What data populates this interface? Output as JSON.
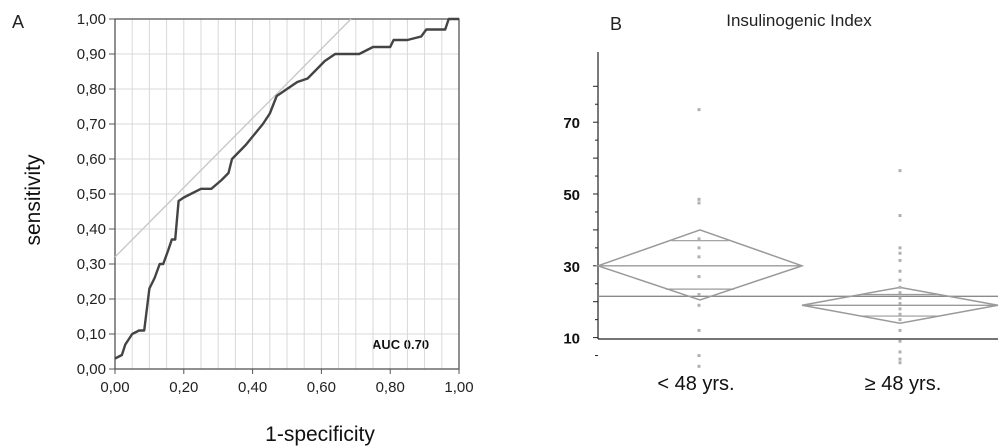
{
  "chart_data": [
    {
      "type": "line",
      "panel": "A",
      "xlabel": "1-specificity",
      "ylabel": "sensitivity",
      "xlim": [
        0,
        1
      ],
      "ylim": [
        0,
        1
      ],
      "xticks": [
        "0,00",
        "0,20",
        "0,40",
        "0,60",
        "0,80",
        "1,00"
      ],
      "yticks": [
        "0,00",
        "0,10",
        "0,20",
        "0,30",
        "0,40",
        "0,50",
        "0,60",
        "0,70",
        "0,80",
        "0,90",
        "1,00"
      ],
      "grid": true,
      "annotation": "AUC 0.70",
      "series": [
        {
          "x": [
            0.0,
            0.02,
            0.03,
            0.05,
            0.07,
            0.085,
            0.1,
            0.115,
            0.13,
            0.14,
            0.155,
            0.165,
            0.175,
            0.185,
            0.2,
            0.22,
            0.25,
            0.28,
            0.31,
            0.33,
            0.34,
            0.38,
            0.43,
            0.45,
            0.47,
            0.5,
            0.53,
            0.56,
            0.58,
            0.61,
            0.64,
            0.69,
            0.71,
            0.75,
            0.8,
            0.81,
            0.85,
            0.89,
            0.905,
            0.91,
            0.96,
            0.97,
            1.0
          ],
          "y": [
            0.03,
            0.04,
            0.07,
            0.1,
            0.11,
            0.11,
            0.23,
            0.26,
            0.3,
            0.3,
            0.34,
            0.37,
            0.37,
            0.48,
            0.49,
            0.5,
            0.515,
            0.515,
            0.54,
            0.56,
            0.6,
            0.64,
            0.7,
            0.73,
            0.78,
            0.8,
            0.82,
            0.83,
            0.85,
            0.88,
            0.9,
            0.9,
            0.9,
            0.92,
            0.92,
            0.94,
            0.94,
            0.95,
            0.97,
            0.97,
            0.97,
            1.0,
            1.0
          ]
        },
        {
          "x": [
            0,
            0.686
          ],
          "y": [
            0.32,
            1.0
          ]
        }
      ]
    },
    {
      "type": "scatter",
      "panel": "B",
      "title": "Insulinogenic Index",
      "categories": [
        "< 48 yrs.",
        "≥ 48 yrs."
      ],
      "yticks": [
        "10",
        "30",
        "50",
        "70"
      ],
      "ylim": [
        0,
        80
      ],
      "grand_mean": 21.5,
      "groups": [
        {
          "mean": 30,
          "ci": [
            20.5,
            40
          ],
          "inner": [
            23.5,
            37
          ],
          "points": [
            73.5,
            48.5,
            47.5,
            37.5,
            35,
            32.5,
            27,
            22,
            19,
            12,
            5,
            2
          ]
        },
        {
          "mean": 19,
          "ci": [
            14,
            24
          ],
          "inner": [
            16,
            22
          ],
          "points": [
            56.5,
            44,
            35,
            33.5,
            31.5,
            28.5,
            26,
            24,
            22.5,
            21,
            19.5,
            18,
            16.5,
            15,
            12,
            9,
            6,
            4,
            3
          ]
        }
      ]
    }
  ]
}
